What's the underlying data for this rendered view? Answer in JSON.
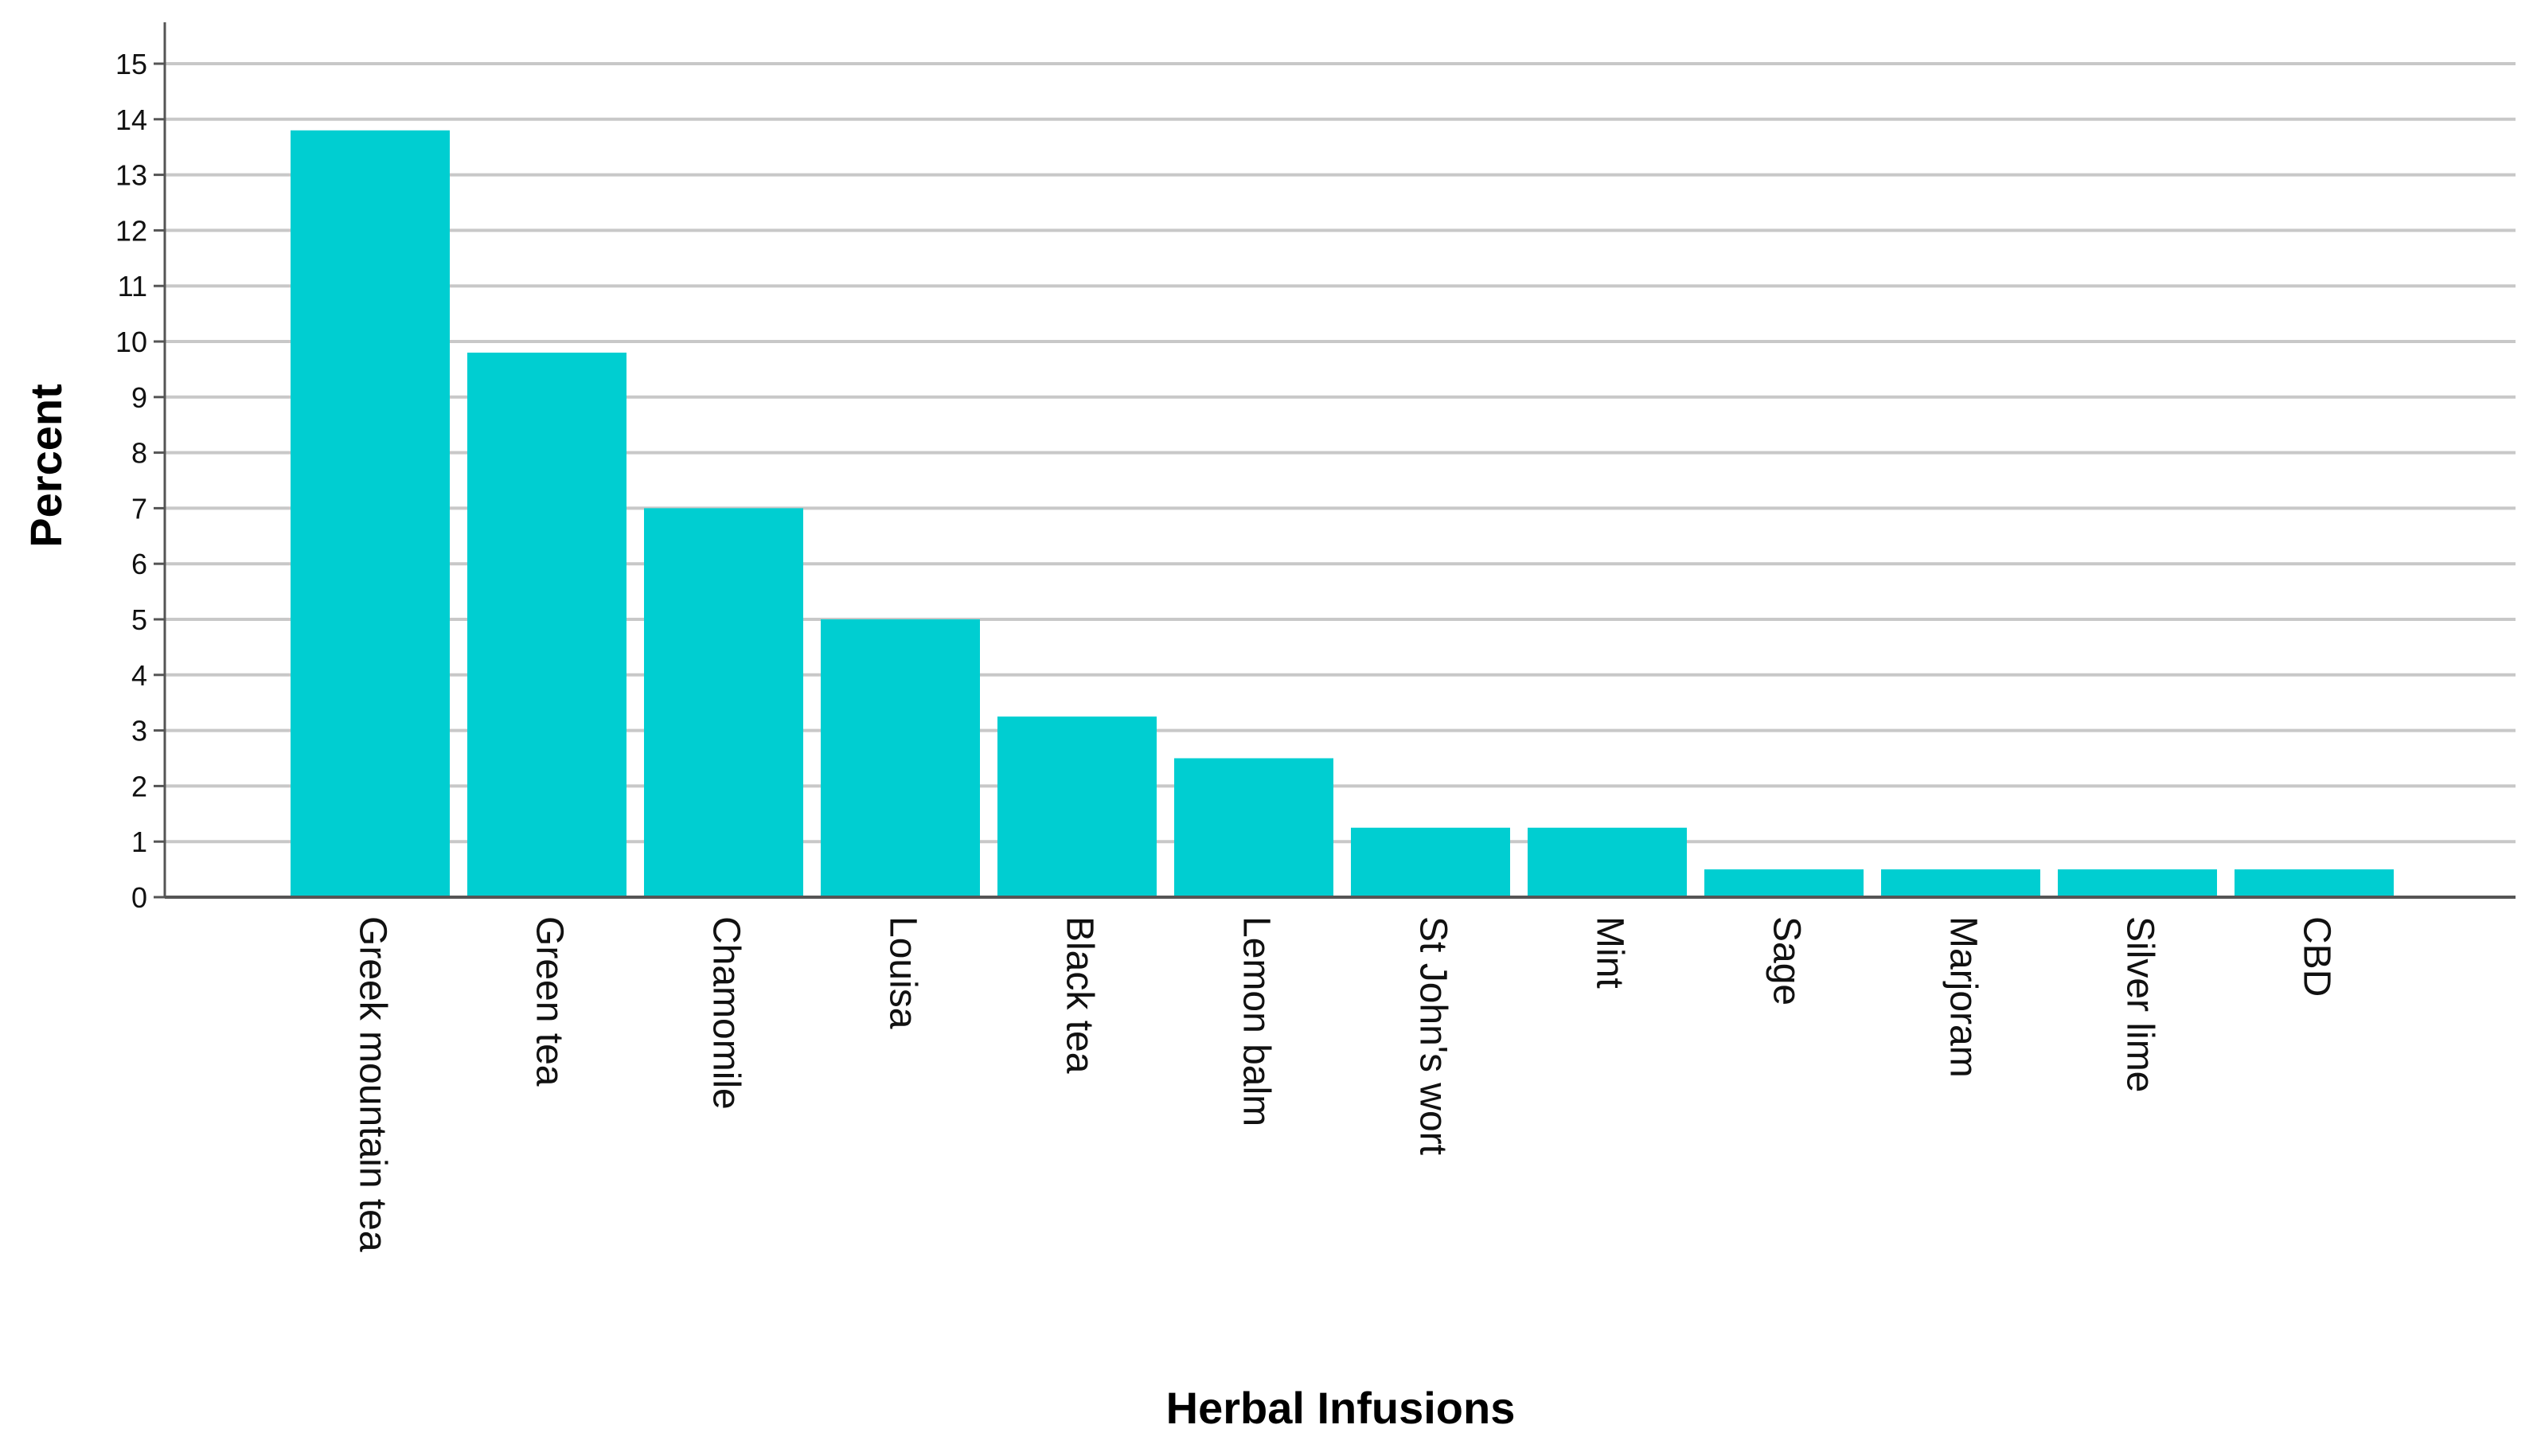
{
  "chart_data": {
    "type": "bar",
    "title": "",
    "xlabel": "Herbal Infusions",
    "ylabel": "Percent",
    "categories": [
      "Greek mountain tea",
      "Green tea",
      "Chamomile",
      "Louisa",
      "Black tea",
      "Lemon balm",
      "St John's wort",
      "Mint",
      "Sage",
      "Marjoram",
      "Silver lime",
      "CBD"
    ],
    "values": [
      13.8,
      9.8,
      7.0,
      5.0,
      3.25,
      2.5,
      1.25,
      1.25,
      0.5,
      0.5,
      0.5,
      0.5
    ],
    "ylim": [
      0,
      15
    ],
    "yticks": [
      0,
      1,
      2,
      3,
      4,
      5,
      6,
      7,
      8,
      9,
      10,
      11,
      12,
      13,
      14,
      15
    ],
    "grid": true,
    "legend": "none",
    "colors": {
      "bar": "#00CED1",
      "grid": "#C8C8C8",
      "axis": "#555555",
      "text": "#111111"
    }
  }
}
